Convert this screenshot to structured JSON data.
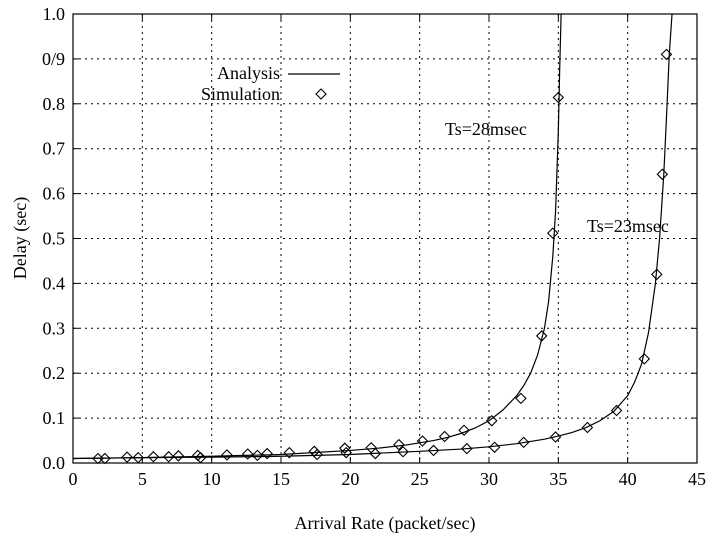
{
  "chart_data": {
    "type": "line",
    "xlabel": "Arrival Rate (packet/sec)",
    "ylabel": "Delay (sec)",
    "xlim": [
      0,
      45
    ],
    "ylim": [
      0,
      1.0
    ],
    "xticks": [
      0,
      5,
      10,
      15,
      20,
      25,
      30,
      35,
      40,
      45
    ],
    "xtick_labels": [
      "0",
      "5",
      "10",
      "15",
      "20",
      "25",
      "30",
      "35",
      "40",
      "45"
    ],
    "yticks": [
      0.0,
      0.1,
      0.2,
      0.3,
      0.4,
      0.5,
      0.6,
      0.7,
      0.8,
      0.9,
      1.0
    ],
    "ytick_labels": [
      "0.0",
      "0.1",
      "0.2",
      "0.3",
      "0.4",
      "0.5",
      "0.6",
      "0.7",
      "0.8",
      "0/9",
      "1.0"
    ],
    "grid": true,
    "legend": {
      "placement": "top-left",
      "entries": [
        {
          "label": "Analysis",
          "marker": "line"
        },
        {
          "label": "Simulation",
          "marker": "diamond"
        }
      ]
    },
    "series": [
      {
        "name": "Ts=28msec",
        "kind": "analysis",
        "x": [
          0,
          5,
          10,
          15,
          20,
          22,
          24,
          26,
          27,
          28,
          29,
          30,
          31,
          32,
          32.5,
          33,
          33.5,
          34,
          34.3,
          34.6,
          34.8,
          35.0,
          35.1,
          35.2
        ],
        "y": [
          0.01,
          0.012,
          0.015,
          0.019,
          0.028,
          0.033,
          0.04,
          0.05,
          0.057,
          0.066,
          0.078,
          0.094,
          0.118,
          0.15,
          0.172,
          0.2,
          0.24,
          0.3,
          0.36,
          0.46,
          0.56,
          0.74,
          0.88,
          1.0
        ]
      },
      {
        "name": "Ts=28msec",
        "kind": "simulation",
        "x": [
          2.3,
          3.9,
          4.7,
          5.8,
          6.9,
          7.6,
          9.0,
          11.1,
          12.6,
          14.0,
          15.6,
          17.4,
          19.6,
          21.5,
          23.5,
          25.2,
          26.8,
          28.2,
          30.2,
          32.3,
          33.8,
          34.6,
          35.0
        ],
        "y": [
          0.01,
          0.013,
          0.012,
          0.014,
          0.014,
          0.016,
          0.017,
          0.018,
          0.02,
          0.021,
          0.023,
          0.026,
          0.033,
          0.034,
          0.041,
          0.049,
          0.059,
          0.073,
          0.094,
          0.144,
          0.283,
          0.512,
          0.814
        ]
      },
      {
        "name": "Ts=23msec",
        "kind": "analysis",
        "x": [
          0,
          5,
          10,
          15,
          20,
          25,
          28,
          30,
          32,
          34,
          35,
          36,
          37,
          38,
          39,
          40,
          40.5,
          41,
          41.5,
          42,
          42.3,
          42.6,
          42.8,
          43.0,
          43.2
        ],
        "y": [
          0.01,
          0.012,
          0.013,
          0.015,
          0.019,
          0.026,
          0.031,
          0.036,
          0.043,
          0.053,
          0.06,
          0.068,
          0.079,
          0.094,
          0.115,
          0.15,
          0.18,
          0.22,
          0.29,
          0.4,
          0.5,
          0.64,
          0.77,
          0.91,
          1.0
        ]
      },
      {
        "name": "Ts=23msec",
        "kind": "simulation",
        "x": [
          1.8,
          9.2,
          13.3,
          17.6,
          19.7,
          21.8,
          23.8,
          26.0,
          28.4,
          30.4,
          32.5,
          34.8,
          37.1,
          39.2,
          41.2,
          42.1,
          42.5,
          42.8
        ],
        "y": [
          0.01,
          0.012,
          0.017,
          0.019,
          0.023,
          0.021,
          0.025,
          0.028,
          0.032,
          0.035,
          0.046,
          0.058,
          0.079,
          0.117,
          0.232,
          0.42,
          0.643,
          0.91
        ]
      }
    ],
    "annotations": [
      {
        "text": "Ts=28msec",
        "near_series": "Ts=28msec"
      },
      {
        "text": "Ts=23msec",
        "near_series": "Ts=23msec"
      }
    ]
  }
}
